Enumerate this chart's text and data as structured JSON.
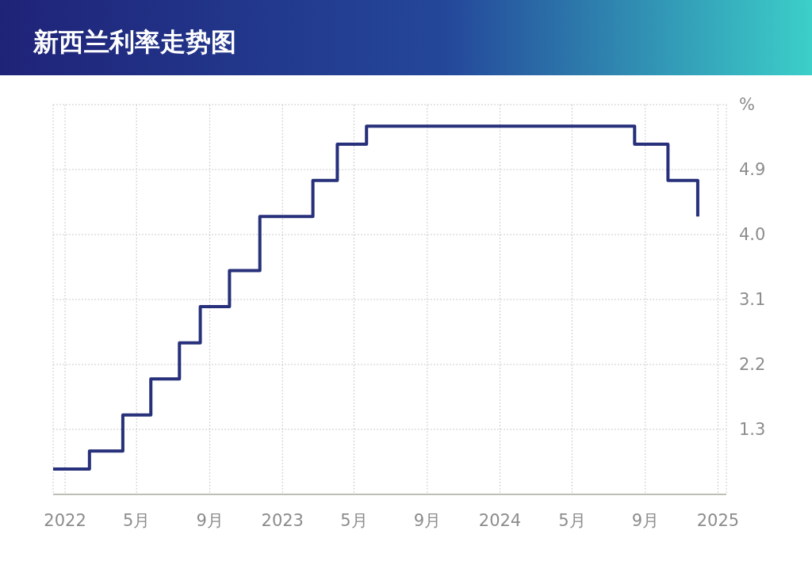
{
  "chart_data": {
    "type": "step",
    "title": "新西兰利率走势图",
    "x": [
      "2021-12-12",
      "2022-02-11",
      "2022-04-08",
      "2022-05-25",
      "2022-07-12",
      "2022-08-16",
      "2022-10-04",
      "2022-11-24",
      "2023-02-21",
      "2023-04-03",
      "2023-05-22",
      "2024-08-14",
      "2024-10-09",
      "2024-11-28"
    ],
    "series": [
      {
        "color": "#27307a",
        "values": [
          0.75,
          1,
          1.5,
          2,
          2.5,
          3,
          3.5,
          4.25,
          4.75,
          5.25,
          5.5,
          5.25,
          4.75,
          4.25
        ]
      }
    ],
    "xlim": [
      "2021-12-12",
      "2025-01-15"
    ],
    "xticks": [
      {
        "value": "2022-01-01",
        "label": "2022"
      },
      {
        "value": "2022-05-01",
        "label": "5月"
      },
      {
        "value": "2022-09-01",
        "label": "9月"
      },
      {
        "value": "2023-01-01",
        "label": "2023"
      },
      {
        "value": "2023-05-01",
        "label": "5月"
      },
      {
        "value": "2023-09-01",
        "label": "9月"
      },
      {
        "value": "2024-01-01",
        "label": "2024"
      },
      {
        "value": "2024-05-01",
        "label": "5月"
      },
      {
        "value": "2024-09-01",
        "label": "9月"
      },
      {
        "value": "2025-01-01",
        "label": "2025"
      }
    ],
    "ylim": [
      0.4,
      5.8
    ],
    "yticks": [
      1.3,
      2.2,
      3.1,
      {
        "value": 4.0,
        "label": "4.0"
      },
      4.9,
      {
        "value": 5.8,
        "label": "%"
      }
    ],
    "grid": true
  }
}
